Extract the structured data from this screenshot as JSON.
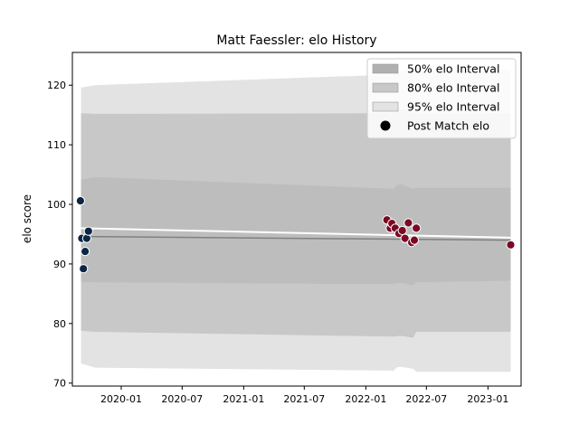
{
  "chart_data": {
    "type": "scatter",
    "title": "Matt Faessler: elo History",
    "xlabel": "",
    "ylabel": "elo score",
    "xlim": [
      "2019-08-08",
      "2023-04-10"
    ],
    "ylim": [
      69.5,
      125.5
    ],
    "x_ticks": [
      "2020-01",
      "2020-07",
      "2021-01",
      "2021-07",
      "2022-01",
      "2022-07",
      "2023-01"
    ],
    "y_ticks": [
      70,
      80,
      90,
      100,
      110,
      120
    ],
    "grid": false,
    "legend_position": "top-right",
    "legend": [
      {
        "label": "50% elo Interval",
        "kind": "patch",
        "color": "#b0b0b0"
      },
      {
        "label": "80% elo Interval",
        "kind": "patch",
        "color": "#c8c8c8"
      },
      {
        "label": "95% elo Interval",
        "kind": "patch",
        "color": "#e3e3e3"
      },
      {
        "label": "Post Match elo",
        "kind": "marker",
        "color": "#000000"
      }
    ],
    "bands": [
      {
        "name": "95% elo Interval",
        "color": "#e3e3e3",
        "x": [
          "2019-09-03",
          "2019-10-15",
          "2022-03-25",
          "2022-04-05",
          "2022-04-20",
          "2022-05-22",
          "2022-06-01",
          "2023-03-10"
        ],
        "upper": [
          119.6,
          120.0,
          121.8,
          122.5,
          122.5,
          122.8,
          122.3,
          122.6
        ],
        "lower": [
          73.3,
          72.6,
          72.1,
          72.7,
          72.7,
          72.4,
          71.9,
          71.9
        ]
      },
      {
        "name": "80% elo Interval",
        "color": "#c8c8c8",
        "x": [
          "2019-09-03",
          "2019-10-15",
          "2022-03-25",
          "2022-04-05",
          "2022-04-20",
          "2022-05-22",
          "2022-06-01",
          "2023-03-10"
        ],
        "upper": [
          115.3,
          115.2,
          115.3,
          116.0,
          116.0,
          115.4,
          115.2,
          115.3
        ],
        "lower": [
          78.8,
          78.6,
          77.8,
          77.9,
          77.9,
          77.6,
          78.6,
          78.6
        ]
      },
      {
        "name": "50% elo Interval",
        "color": "#bdbdbd",
        "x": [
          "2019-09-03",
          "2019-10-15",
          "2022-03-25",
          "2022-04-05",
          "2022-04-20",
          "2022-05-22",
          "2022-06-01",
          "2023-03-10"
        ],
        "upper": [
          104.1,
          104.6,
          102.6,
          103.3,
          103.3,
          102.6,
          102.8,
          102.8
        ],
        "lower": [
          87.0,
          86.9,
          86.6,
          86.8,
          86.8,
          86.4,
          86.9,
          87.2
        ]
      }
    ],
    "lines": [
      {
        "name": "mean",
        "color": "#808080",
        "x": [
          "2019-09-03",
          "2023-03-10"
        ],
        "y": [
          94.6,
          94.0
        ]
      },
      {
        "name": "trend",
        "color": "#ffffff",
        "x": [
          "2019-09-03",
          "2023-03-10"
        ],
        "y": [
          96.0,
          94.4
        ]
      }
    ],
    "series": [
      {
        "color": "#0b2545",
        "x": [
          "2019-09-01",
          "2019-09-05",
          "2019-09-10",
          "2019-09-15",
          "2019-09-20",
          "2019-09-25"
        ],
        "y": [
          100.6,
          94.3,
          89.2,
          92.1,
          94.3,
          95.5
        ]
      },
      {
        "color": "#7a0a24",
        "x": [
          "2022-03-05",
          "2022-03-15",
          "2022-03-20",
          "2022-03-30",
          "2022-04-10",
          "2022-04-20",
          "2022-04-28",
          "2022-05-08",
          "2022-05-18",
          "2022-05-26",
          "2022-06-01",
          "2023-03-10"
        ],
        "y": [
          97.4,
          96.0,
          96.8,
          96.0,
          95.1,
          95.6,
          94.3,
          96.9,
          93.6,
          94.0,
          96.0,
          93.2
        ]
      }
    ]
  }
}
